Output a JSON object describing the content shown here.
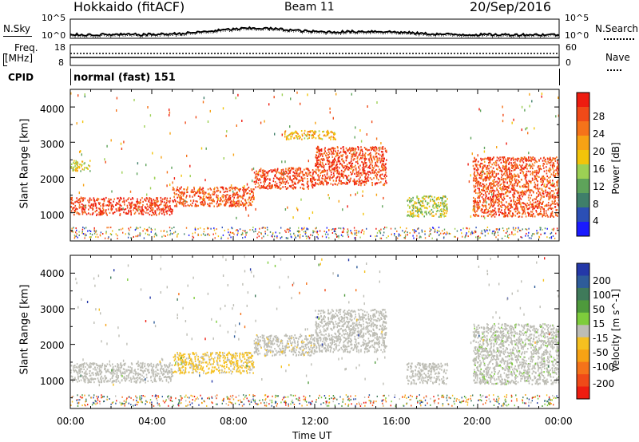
{
  "header": {
    "station": "Hokkaido (fitACF)",
    "beam": "Beam 11",
    "date": "20/Sep/2016"
  },
  "strip_labels": {
    "nsky": "N.Sky",
    "nsearch": "N.Search",
    "freq_line1": "Freq.",
    "freq_line2": "[MHz]",
    "nave": "Nave",
    "cpid": "CPID",
    "cpid_value": "normal (fast) 151",
    "noise_top_left": "10^5",
    "noise_bot_left": "10^0",
    "noise_top_right": "10^5",
    "noise_bot_right": "10^0",
    "freq_top_left": "18",
    "freq_bot_left": "8",
    "nave_top_right": "60",
    "nave_bot_right": "0"
  },
  "axes": {
    "xlabel": "Time UT",
    "ylabel": "Slant Range [km]",
    "xticks": [
      "00:00",
      "04:00",
      "08:00",
      "12:00",
      "16:00",
      "20:00",
      "00:00"
    ],
    "yticks": [
      "1000",
      "2000",
      "3000",
      "4000"
    ]
  },
  "colorbars": {
    "power": {
      "label": "Power [dB]",
      "ticks": [
        "4",
        "8",
        "12",
        "16",
        "20",
        "24",
        "28"
      ],
      "colors": [
        "#1a1aff",
        "#2b4fb5",
        "#3f7f6a",
        "#5ea35a",
        "#9cd054",
        "#f2c40a",
        "#f7a214",
        "#f5731a",
        "#f04a18",
        "#ee1c10"
      ]
    },
    "velocity": {
      "label": "Velocity [m s^-1]",
      "ticks": [
        "200",
        "100",
        "50",
        "15",
        "-15",
        "-50",
        "-100",
        "-200"
      ],
      "colors": [
        "#2438a8",
        "#2e5c9a",
        "#3f7a5a",
        "#4e9a3c",
        "#7ecc3c",
        "#bdbdb5",
        "#f5c020",
        "#f7a214",
        "#f5731a",
        "#f04a18",
        "#ee1c10"
      ]
    }
  },
  "chart_data": [
    {
      "type": "heatmap",
      "title": "Power",
      "xlabel": "Time UT",
      "ylabel": "Slant Range [km]",
      "xlim": [
        "00:00",
        "24:00"
      ],
      "ylim": [
        200,
        4500
      ],
      "colorbar": {
        "label": "Power [dB]",
        "range": [
          0,
          30
        ]
      },
      "bands": [
        {
          "start": "00:00",
          "end": "05:00",
          "range_low": 950,
          "range_high": 1450,
          "power": 28
        },
        {
          "start": "05:00",
          "end": "09:00",
          "range_low": 1200,
          "range_high": 1750,
          "power": 26
        },
        {
          "start": "09:00",
          "end": "12:00",
          "range_low": 1700,
          "range_high": 2300,
          "power": 27
        },
        {
          "start": "12:00",
          "end": "15:30",
          "range_low": 1800,
          "range_high": 2900,
          "power": 27
        },
        {
          "start": "16:30",
          "end": "18:30",
          "range_low": 900,
          "range_high": 1500,
          "power": 14
        },
        {
          "start": "19:45",
          "end": "24:00",
          "range_low": 900,
          "range_high": 2600,
          "power": 26
        },
        {
          "start": "00:00",
          "end": "01:00",
          "range_low": 2200,
          "range_high": 2500,
          "power": 16
        },
        {
          "start": "10:30",
          "end": "13:00",
          "range_low": 3100,
          "range_high": 3350,
          "power": 18
        }
      ]
    },
    {
      "type": "heatmap",
      "title": "Velocity",
      "xlabel": "Time UT",
      "ylabel": "Slant Range [km]",
      "xlim": [
        "00:00",
        "24:00"
      ],
      "ylim": [
        200,
        4500
      ],
      "colorbar": {
        "label": "Velocity [m s^-1]",
        "range": [
          -200,
          200
        ]
      },
      "bands": [
        {
          "start": "00:00",
          "end": "05:00",
          "range_low": 950,
          "range_high": 1500,
          "velocity": 0
        },
        {
          "start": "05:00",
          "end": "09:00",
          "range_low": 1200,
          "range_high": 1800,
          "velocity": -30
        },
        {
          "start": "09:00",
          "end": "12:00",
          "range_low": 1700,
          "range_high": 2300,
          "velocity": -20
        },
        {
          "start": "12:00",
          "end": "15:30",
          "range_low": 1800,
          "range_high": 3000,
          "velocity": 0
        },
        {
          "start": "16:30",
          "end": "18:30",
          "range_low": 900,
          "range_high": 1500,
          "velocity": 0
        },
        {
          "start": "19:45",
          "end": "24:00",
          "range_low": 900,
          "range_high": 2600,
          "velocity": 20
        }
      ]
    }
  ]
}
